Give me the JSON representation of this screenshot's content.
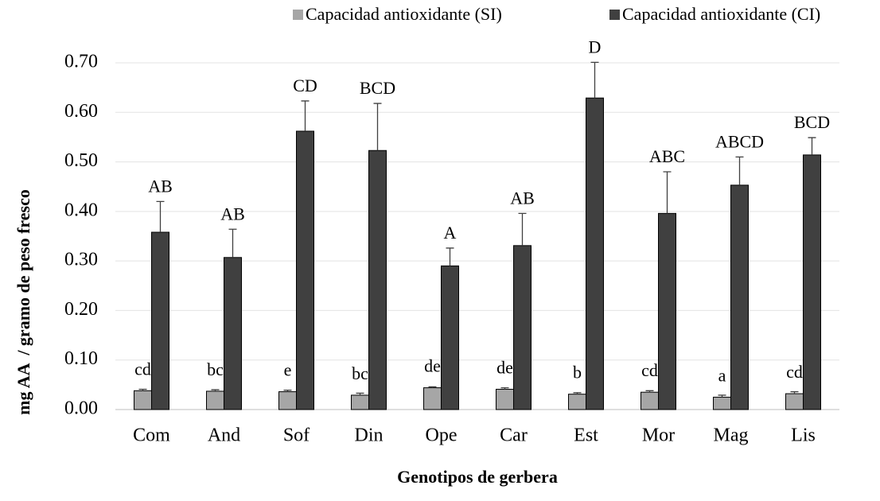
{
  "chart_data": {
    "type": "bar",
    "categories": [
      "Com",
      "And",
      "Sof",
      "Din",
      "Ope",
      "Car",
      "Est",
      "Mor",
      "Mag",
      "Lis"
    ],
    "series": [
      {
        "name": "Capacidad antioxidante (SI)",
        "color": "#a6a6a6",
        "values": [
          0.038,
          0.037,
          0.036,
          0.029,
          0.044,
          0.041,
          0.031,
          0.035,
          0.025,
          0.032
        ],
        "errors": [
          0.003,
          0.003,
          0.003,
          0.004,
          0.002,
          0.003,
          0.003,
          0.003,
          0.004,
          0.004
        ],
        "annotations": [
          "cd",
          "bc",
          "e",
          "bc",
          "de",
          "de",
          "b",
          "cd",
          "a",
          "cd"
        ]
      },
      {
        "name": "Capacidad antioxidante (CI)",
        "color": "#404040",
        "values": [
          0.358,
          0.307,
          0.562,
          0.523,
          0.29,
          0.331,
          0.629,
          0.396,
          0.453,
          0.514
        ],
        "errors": [
          0.062,
          0.057,
          0.061,
          0.095,
          0.036,
          0.065,
          0.072,
          0.084,
          0.057,
          0.035
        ],
        "annotations": [
          "AB",
          "AB",
          "CD",
          "BCD",
          "A",
          "AB",
          "D",
          "ABC",
          "ABCD",
          "BCD"
        ]
      }
    ],
    "ylim": [
      0,
      0.7
    ],
    "yticks": [
      {
        "value": 0,
        "label": "0.00"
      },
      {
        "value": 0.1,
        "label": "0.10"
      },
      {
        "value": 0.2,
        "label": "0.20"
      },
      {
        "value": 0.3,
        "label": "0.30"
      },
      {
        "value": 0.4,
        "label": "0.40"
      },
      {
        "value": 0.5,
        "label": "0.50"
      },
      {
        "value": 0.6,
        "label": "0.60"
      },
      {
        "value": 0.7,
        "label": "0.70"
      }
    ],
    "grid": true,
    "legend": "top",
    "xlabel": "Genotipos de gerbera",
    "ylabel": "mg AA  / gramo de peso fresco"
  }
}
